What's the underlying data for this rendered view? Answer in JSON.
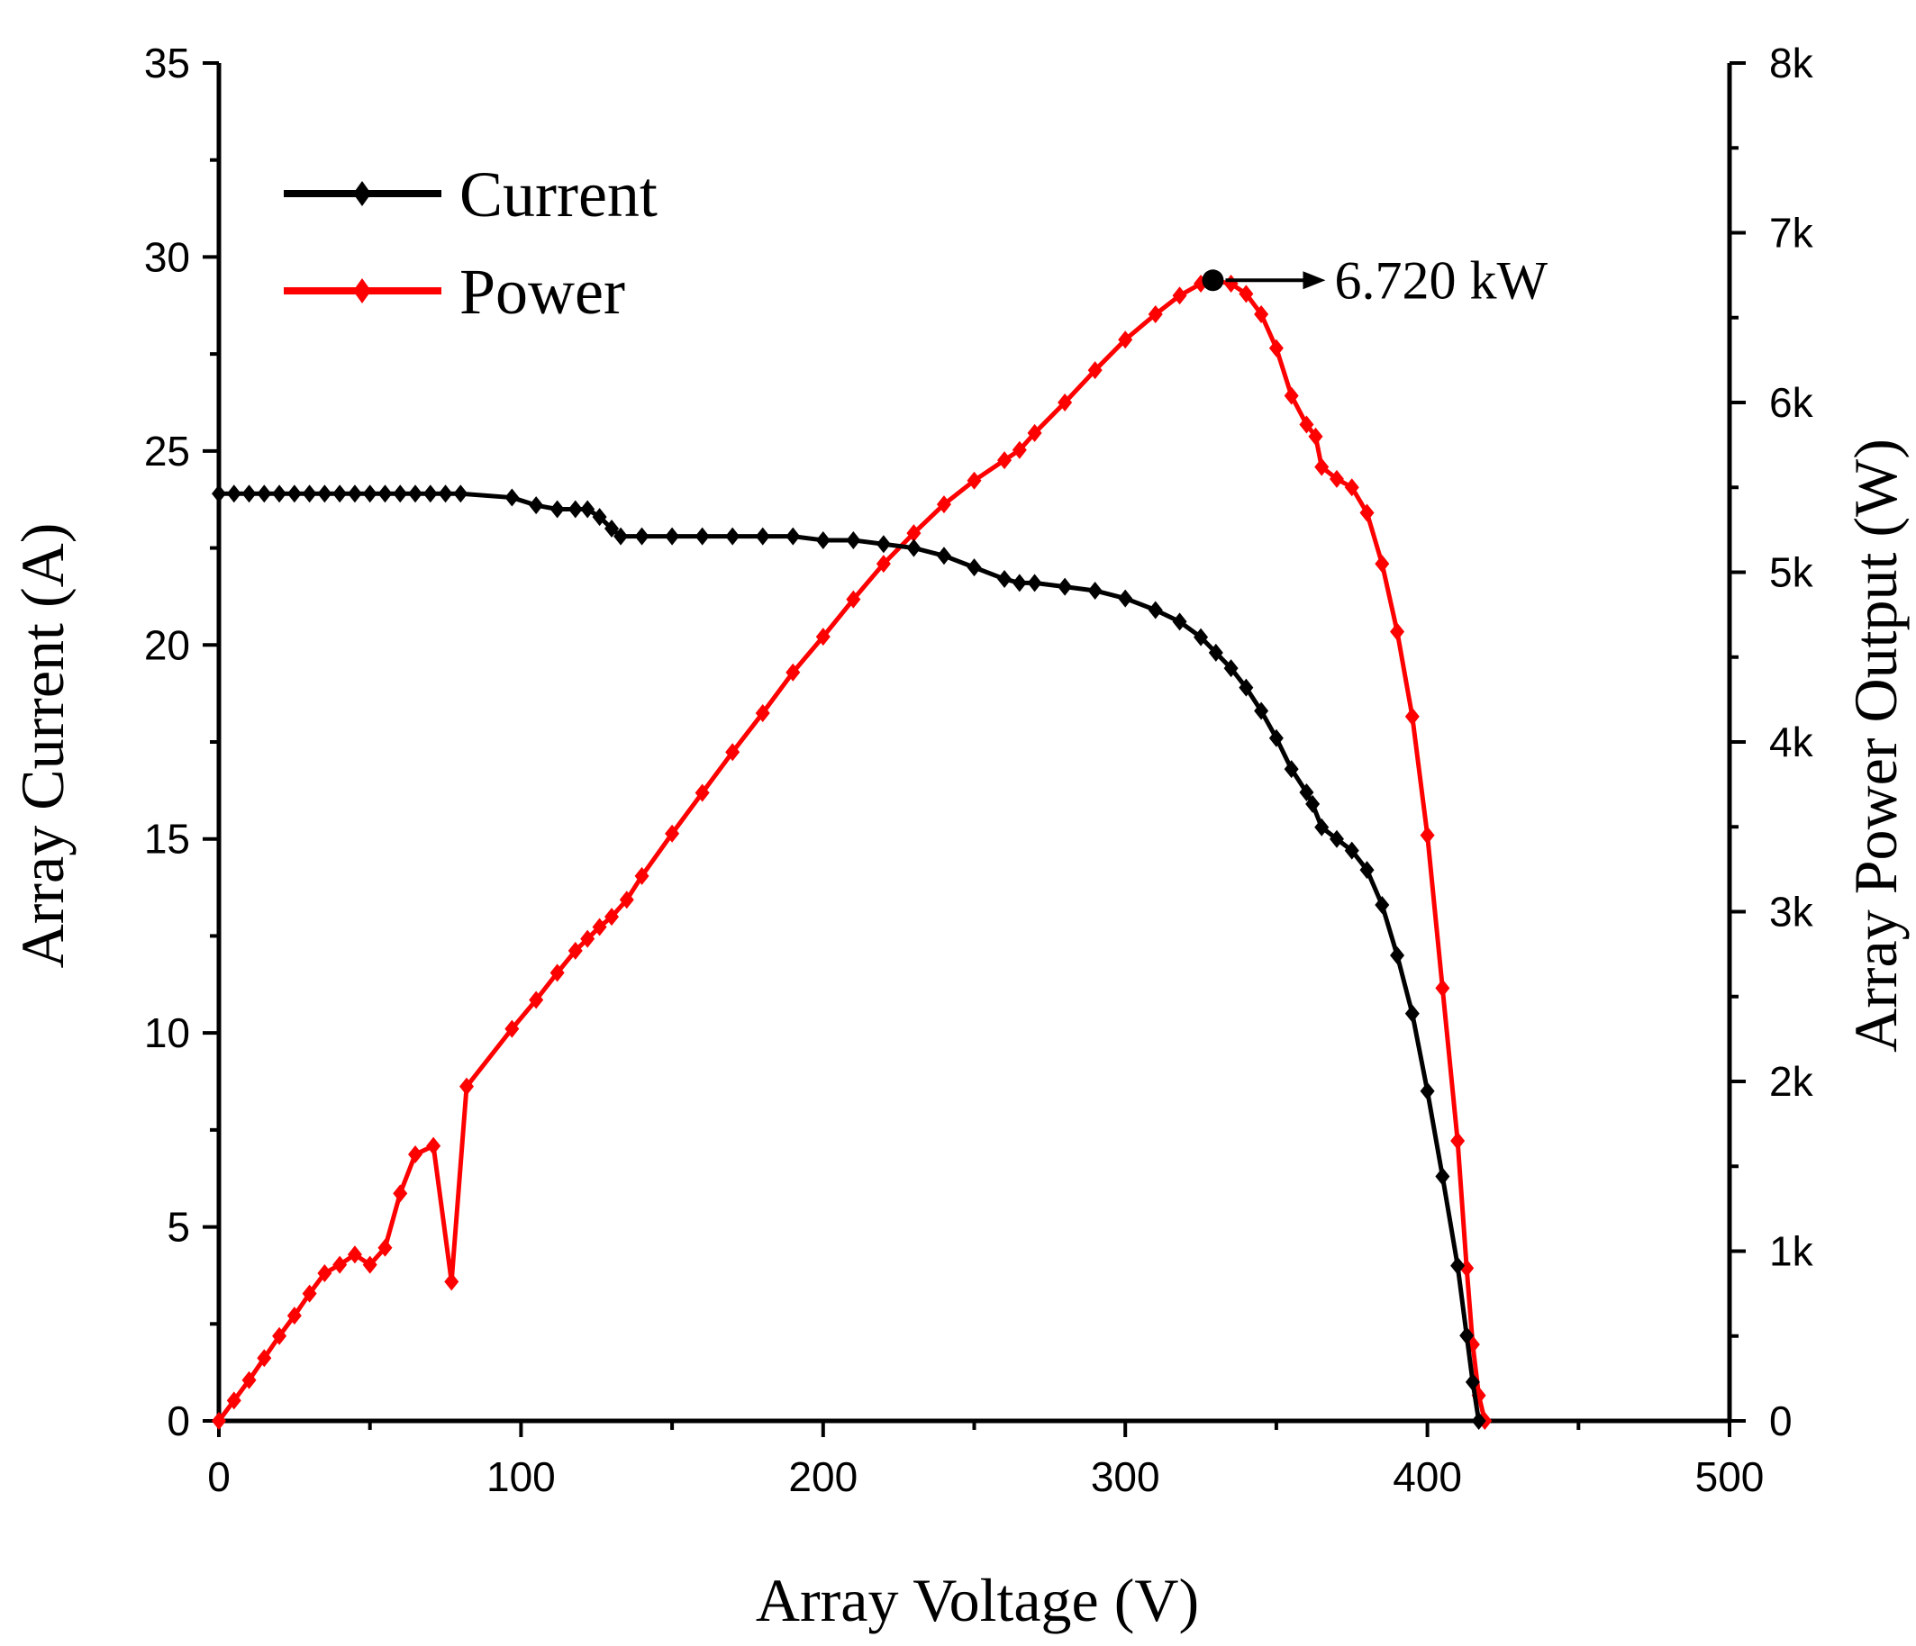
{
  "chart_data": {
    "type": "line",
    "title": "",
    "xlabel": "Array Voltage (V)",
    "ylabel": "Array Current (A)",
    "y2label": "Array Power Output (W)",
    "xlim": [
      0,
      500
    ],
    "ylim": [
      0,
      35
    ],
    "y2lim": [
      0,
      8000
    ],
    "x_ticks": [
      0,
      100,
      200,
      300,
      400,
      500
    ],
    "x_tick_labels": [
      "0",
      "100",
      "200",
      "300",
      "400",
      "500"
    ],
    "y_ticks": [
      0,
      5,
      10,
      15,
      20,
      25,
      30,
      35
    ],
    "y_tick_labels": [
      "0",
      "5",
      "10",
      "15",
      "20",
      "25",
      "30",
      "35"
    ],
    "y2_ticks": [
      0,
      1000,
      2000,
      3000,
      4000,
      5000,
      6000,
      7000,
      8000
    ],
    "y2_tick_labels": [
      "0",
      "1k",
      "2k",
      "3k",
      "4k",
      "5k",
      "6k",
      "7k",
      "8k"
    ],
    "grid": false,
    "legend_position": "top-left",
    "series": [
      {
        "name": "Current",
        "axis": "left",
        "color": "#000000",
        "marker": "diamond",
        "points": [
          [
            0,
            23.9
          ],
          [
            5,
            23.9
          ],
          [
            10,
            23.9
          ],
          [
            15,
            23.9
          ],
          [
            20,
            23.9
          ],
          [
            25,
            23.9
          ],
          [
            30,
            23.9
          ],
          [
            35,
            23.9
          ],
          [
            40,
            23.9
          ],
          [
            45,
            23.9
          ],
          [
            50,
            23.9
          ],
          [
            55,
            23.9
          ],
          [
            60,
            23.9
          ],
          [
            65,
            23.9
          ],
          [
            70,
            23.9
          ],
          [
            75,
            23.9
          ],
          [
            80,
            23.9
          ],
          [
            97,
            23.8
          ],
          [
            105,
            23.6
          ],
          [
            112,
            23.5
          ],
          [
            118,
            23.5
          ],
          [
            122,
            23.5
          ],
          [
            126,
            23.3
          ],
          [
            130,
            23.0
          ],
          [
            133,
            22.8
          ],
          [
            140,
            22.8
          ],
          [
            150,
            22.8
          ],
          [
            160,
            22.8
          ],
          [
            170,
            22.8
          ],
          [
            180,
            22.8
          ],
          [
            190,
            22.8
          ],
          [
            200,
            22.7
          ],
          [
            210,
            22.7
          ],
          [
            220,
            22.6
          ],
          [
            230,
            22.5
          ],
          [
            240,
            22.3
          ],
          [
            250,
            22.0
          ],
          [
            260,
            21.7
          ],
          [
            265,
            21.6
          ],
          [
            270,
            21.6
          ],
          [
            280,
            21.5
          ],
          [
            290,
            21.4
          ],
          [
            300,
            21.2
          ],
          [
            310,
            20.9
          ],
          [
            318,
            20.6
          ],
          [
            325,
            20.2
          ],
          [
            330,
            19.8
          ],
          [
            335,
            19.4
          ],
          [
            340,
            18.9
          ],
          [
            345,
            18.3
          ],
          [
            350,
            17.6
          ],
          [
            355,
            16.8
          ],
          [
            360,
            16.2
          ],
          [
            362,
            15.9
          ],
          [
            365,
            15.3
          ],
          [
            370,
            15.0
          ],
          [
            375,
            14.7
          ],
          [
            380,
            14.2
          ],
          [
            385,
            13.3
          ],
          [
            390,
            12.0
          ],
          [
            395,
            10.5
          ],
          [
            400,
            8.5
          ],
          [
            405,
            6.3
          ],
          [
            410,
            4.0
          ],
          [
            413,
            2.2
          ],
          [
            415,
            1.0
          ],
          [
            417,
            0.0
          ]
        ]
      },
      {
        "name": "Power",
        "axis": "right",
        "color": "#ff0000",
        "marker": "diamond",
        "points": [
          [
            0,
            0
          ],
          [
            5,
            120
          ],
          [
            10,
            240
          ],
          [
            15,
            370
          ],
          [
            20,
            500
          ],
          [
            25,
            620
          ],
          [
            30,
            750
          ],
          [
            35,
            870
          ],
          [
            40,
            920
          ],
          [
            45,
            980
          ],
          [
            50,
            920
          ],
          [
            55,
            1020
          ],
          [
            60,
            1340
          ],
          [
            65,
            1570
          ],
          [
            71,
            1620
          ],
          [
            77,
            820
          ],
          [
            82,
            1970
          ],
          [
            97,
            2310
          ],
          [
            105,
            2480
          ],
          [
            112,
            2640
          ],
          [
            118,
            2770
          ],
          [
            122,
            2840
          ],
          [
            126,
            2910
          ],
          [
            130,
            2970
          ],
          [
            135,
            3070
          ],
          [
            140,
            3210
          ],
          [
            150,
            3460
          ],
          [
            160,
            3700
          ],
          [
            170,
            3940
          ],
          [
            180,
            4170
          ],
          [
            190,
            4410
          ],
          [
            200,
            4620
          ],
          [
            210,
            4840
          ],
          [
            220,
            5050
          ],
          [
            230,
            5230
          ],
          [
            240,
            5400
          ],
          [
            250,
            5540
          ],
          [
            260,
            5660
          ],
          [
            265,
            5720
          ],
          [
            270,
            5820
          ],
          [
            280,
            6000
          ],
          [
            290,
            6190
          ],
          [
            300,
            6370
          ],
          [
            310,
            6520
          ],
          [
            318,
            6630
          ],
          [
            325,
            6700
          ],
          [
            329,
            6720
          ],
          [
            335,
            6700
          ],
          [
            340,
            6640
          ],
          [
            345,
            6520
          ],
          [
            350,
            6320
          ],
          [
            355,
            6040
          ],
          [
            360,
            5870
          ],
          [
            363,
            5800
          ],
          [
            365,
            5620
          ],
          [
            370,
            5550
          ],
          [
            375,
            5500
          ],
          [
            380,
            5350
          ],
          [
            385,
            5050
          ],
          [
            390,
            4650
          ],
          [
            395,
            4150
          ],
          [
            400,
            3450
          ],
          [
            405,
            2550
          ],
          [
            410,
            1650
          ],
          [
            413,
            900
          ],
          [
            415,
            450
          ],
          [
            417,
            150
          ],
          [
            419,
            0
          ]
        ]
      }
    ],
    "annotations": [
      {
        "x": 329,
        "y2": 6720,
        "text": "6.720 kW"
      }
    ]
  }
}
